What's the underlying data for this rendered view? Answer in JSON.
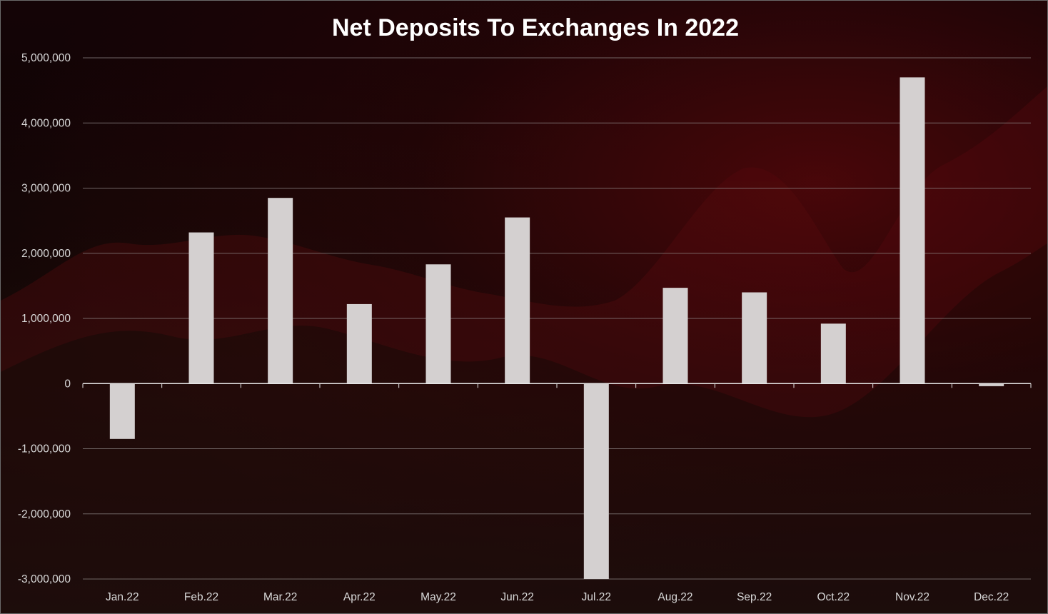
{
  "chart_data": {
    "type": "bar",
    "title": "Net Deposits To Exchanges In 2022",
    "xlabel": "",
    "ylabel": "",
    "categories": [
      "Jan.22",
      "Feb.22",
      "Mar.22",
      "Apr.22",
      "May.22",
      "Jun.22",
      "Jul.22",
      "Aug.22",
      "Sep.22",
      "Oct.22",
      "Nov.22",
      "Dec.22"
    ],
    "values": [
      -850000,
      2320000,
      2850000,
      1220000,
      1830000,
      2550000,
      -3000000,
      1470000,
      1400000,
      920000,
      4700000,
      -40000
    ],
    "ylim": [
      -3000000,
      5000000
    ],
    "yticks": [
      5000000,
      4000000,
      3000000,
      2000000,
      1000000,
      0,
      -1000000,
      -2000000,
      -3000000
    ],
    "ytick_labels": [
      "5,000,000",
      "4,000,000",
      "3,000,000",
      "2,000,000",
      "1,000,000",
      "0",
      "-1,000,000",
      "-2,000,000",
      "-3,000,000"
    ],
    "grid": true,
    "legend": "none",
    "colors": {
      "bar": "#d4d0d0",
      "grid": "#8c8585",
      "axis": "#e6e6e6",
      "text": "#d9d9d9",
      "title": "#ffffff"
    }
  }
}
